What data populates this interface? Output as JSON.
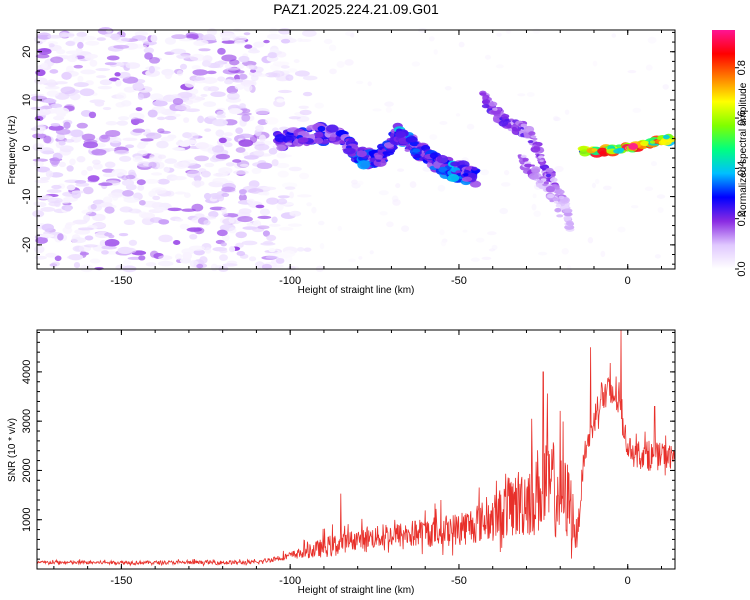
{
  "chart_data": [
    {
      "type": "heatmap",
      "title": "PAZ1.2025.224.21.09.G01",
      "xlabel": "Height of straight line (km)",
      "ylabel": "Frequency (Hz)",
      "xlim": [
        -175,
        14
      ],
      "ylim": [
        -25,
        24.5
      ],
      "x_ticks": [
        -150,
        -100,
        -50,
        0
      ],
      "y_ticks": [
        -20,
        -10,
        0,
        10,
        20
      ],
      "colorbar": {
        "label": "Normalized spectral amplitude",
        "range": [
          0,
          0.95
        ],
        "ticks": [
          0.0,
          0.2,
          0.4,
          0.6,
          0.8
        ],
        "colors": [
          "#ffffff",
          "#e0c8ff",
          "#8a2be2",
          "#0000ff",
          "#00bfff",
          "#00ff80",
          "#80ff00",
          "#ffff00",
          "#ff8000",
          "#ff0000",
          "#ff1493"
        ]
      },
      "features": {
        "noise_region_x": [
          -175,
          -100
        ],
        "noise_amplitude_range": [
          0.02,
          0.18
        ],
        "ridge": [
          {
            "x": -104,
            "y": 1.5,
            "amp": 0.22
          },
          {
            "x": -98,
            "y": 2.5,
            "amp": 0.25
          },
          {
            "x": -92,
            "y": 2.8,
            "amp": 0.28
          },
          {
            "x": -88,
            "y": 3.0,
            "amp": 0.24
          },
          {
            "x": -83,
            "y": 1.0,
            "amp": 0.26
          },
          {
            "x": -79,
            "y": -1.8,
            "amp": 0.32
          },
          {
            "x": -75,
            "y": -2.2,
            "amp": 0.3
          },
          {
            "x": -72,
            "y": -1.0,
            "amp": 0.26
          },
          {
            "x": -68,
            "y": 3.0,
            "amp": 0.34
          },
          {
            "x": -64,
            "y": 0.5,
            "amp": 0.3
          },
          {
            "x": -60,
            "y": -1.5,
            "amp": 0.28
          },
          {
            "x": -56,
            "y": -3.0,
            "amp": 0.3
          },
          {
            "x": -52,
            "y": -4.5,
            "amp": 0.33
          },
          {
            "x": -48,
            "y": -5.2,
            "amp": 0.3
          },
          {
            "x": -45,
            "y": -6.0,
            "amp": 0.24
          }
        ],
        "upper_branch": [
          {
            "x": -43,
            "y": 10.5,
            "amp": 0.2
          },
          {
            "x": -40,
            "y": 8.0,
            "amp": 0.2
          },
          {
            "x": -37,
            "y": 6.0,
            "amp": 0.24
          },
          {
            "x": -34,
            "y": 4.5,
            "amp": 0.2
          },
          {
            "x": -31,
            "y": 4.0,
            "amp": 0.2
          },
          {
            "x": -28,
            "y": 2.0,
            "amp": 0.18
          },
          {
            "x": -26,
            "y": -1.5,
            "amp": 0.18
          },
          {
            "x": -24,
            "y": -4.5,
            "amp": 0.2
          },
          {
            "x": -22,
            "y": -7.5,
            "amp": 0.18
          },
          {
            "x": -20,
            "y": -10.0,
            "amp": 0.15
          },
          {
            "x": -18,
            "y": -12.5,
            "amp": 0.12
          },
          {
            "x": -17,
            "y": -16.5,
            "amp": 0.1
          }
        ],
        "lower_branch": [
          {
            "x": -32,
            "y": -2.0,
            "amp": 0.15
          },
          {
            "x": -29,
            "y": -4.0,
            "amp": 0.16
          },
          {
            "x": -26,
            "y": -6.5,
            "amp": 0.15
          },
          {
            "x": -23,
            "y": -9.0,
            "amp": 0.14
          },
          {
            "x": -20,
            "y": -13.0,
            "amp": 0.1
          }
        ],
        "strong_line": [
          {
            "x": -14,
            "y": -0.5,
            "amp": 0.55
          },
          {
            "x": -9,
            "y": -0.6,
            "amp": 0.8
          },
          {
            "x": -5,
            "y": -0.5,
            "amp": 0.7
          },
          {
            "x": 0,
            "y": 0.2,
            "amp": 0.85
          },
          {
            "x": 5,
            "y": 0.8,
            "amp": 0.7
          },
          {
            "x": 9,
            "y": 1.5,
            "amp": 0.75
          },
          {
            "x": 13,
            "y": 2.0,
            "amp": 0.65
          }
        ]
      }
    },
    {
      "type": "line",
      "xlabel": "Height of straight line (km)",
      "ylabel": "SNR (10 * v/v)",
      "xlim": [
        -175,
        14
      ],
      "ylim": [
        0,
        4850
      ],
      "x_ticks": [
        -150,
        -100,
        -50,
        0
      ],
      "y_ticks": [
        1000,
        2000,
        3000,
        4000
      ],
      "color": "#e8302a",
      "series": [
        {
          "envelope": [
            {
              "x": -175,
              "base": 120,
              "amp": 70
            },
            {
              "x": -110,
              "base": 120,
              "amp": 80
            },
            {
              "x": -100,
              "base": 250,
              "amp": 150
            },
            {
              "x": -88,
              "base": 400,
              "amp": 450
            },
            {
              "x": -80,
              "base": 550,
              "amp": 400
            },
            {
              "x": -70,
              "base": 600,
              "amp": 500
            },
            {
              "x": -60,
              "base": 650,
              "amp": 600
            },
            {
              "x": -50,
              "base": 700,
              "amp": 700
            },
            {
              "x": -40,
              "base": 900,
              "amp": 900
            },
            {
              "x": -30,
              "base": 1200,
              "amp": 1600
            },
            {
              "x": -24,
              "base": 1400,
              "amp": 2000
            },
            {
              "x": -17,
              "base": 1100,
              "amp": 1600
            },
            {
              "x": -15,
              "base": 500,
              "amp": 600
            },
            {
              "x": -13,
              "base": 2200,
              "amp": 500
            },
            {
              "x": -8,
              "base": 3400,
              "amp": 700
            },
            {
              "x": -3,
              "base": 3400,
              "amp": 900
            },
            {
              "x": 0,
              "base": 2400,
              "amp": 400
            },
            {
              "x": 6,
              "base": 2200,
              "amp": 600
            },
            {
              "x": 14,
              "base": 2200,
              "amp": 500
            }
          ],
          "peaks": [
            {
              "x": -85,
              "y": 1530
            },
            {
              "x": -25,
              "y": 4000
            },
            {
              "x": -11,
              "y": 4500
            },
            {
              "x": -2,
              "y": 4850
            },
            {
              "x": 8,
              "y": 3300
            }
          ]
        }
      ]
    }
  ]
}
